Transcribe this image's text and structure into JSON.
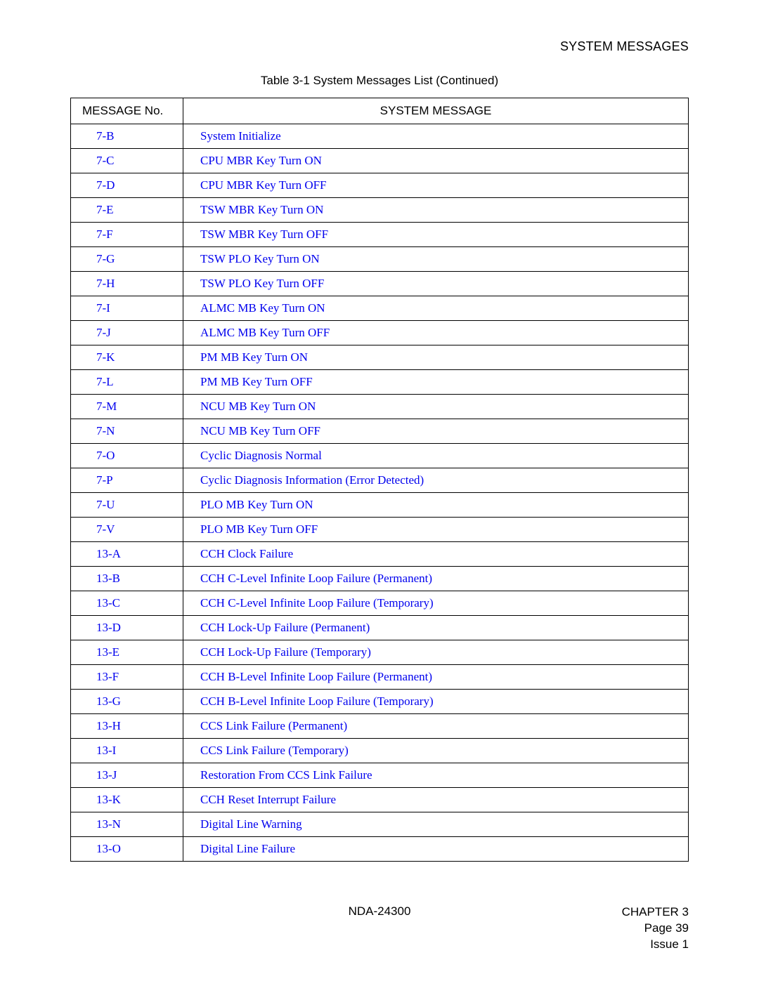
{
  "header": {
    "section_title": "SYSTEM MESSAGES"
  },
  "table": {
    "caption": "Table 3-1  System Messages List (Continued)",
    "columns": [
      "MESSAGE No.",
      "SYSTEM MESSAGE"
    ],
    "link_color": "#0000ee",
    "border_color": "#000000",
    "rows": [
      {
        "no": "7-B",
        "msg": "System Initialize"
      },
      {
        "no": "7-C",
        "msg": "CPU MBR Key Turn ON"
      },
      {
        "no": "7-D",
        "msg": "CPU MBR Key Turn OFF"
      },
      {
        "no": "7-E",
        "msg": "TSW MBR Key Turn ON"
      },
      {
        "no": "7-F",
        "msg": "TSW MBR Key Turn OFF"
      },
      {
        "no": "7-G",
        "msg": "TSW PLO Key Turn ON"
      },
      {
        "no": "7-H",
        "msg": "TSW PLO Key Turn OFF"
      },
      {
        "no": "7-I",
        "msg": "ALMC MB Key Turn ON"
      },
      {
        "no": "7-J",
        "msg": "ALMC MB Key Turn OFF"
      },
      {
        "no": "7-K",
        "msg": "PM MB Key Turn ON"
      },
      {
        "no": "7-L",
        "msg": "PM MB Key Turn OFF"
      },
      {
        "no": "7-M",
        "msg": "NCU MB Key Turn ON"
      },
      {
        "no": "7-N",
        "msg": "NCU MB Key Turn OFF"
      },
      {
        "no": "7-O",
        "msg": "Cyclic Diagnosis Normal"
      },
      {
        "no": "7-P",
        "msg": "Cyclic Diagnosis Information (Error Detected)"
      },
      {
        "no": "7-U",
        "msg": "PLO MB Key Turn ON"
      },
      {
        "no": "7-V",
        "msg": "PLO MB Key Turn OFF"
      },
      {
        "no": "13-A",
        "msg": "CCH Clock Failure"
      },
      {
        "no": "13-B",
        "msg": "CCH C-Level Infinite Loop Failure (Permanent)"
      },
      {
        "no": "13-C",
        "msg": "CCH C-Level Infinite Loop Failure (Temporary)"
      },
      {
        "no": "13-D",
        "msg": "CCH Lock-Up Failure (Permanent)"
      },
      {
        "no": "13-E",
        "msg": "CCH Lock-Up Failure (Temporary)"
      },
      {
        "no": "13-F",
        "msg": "CCH B-Level Infinite Loop Failure (Permanent)"
      },
      {
        "no": "13-G",
        "msg": "CCH B-Level Infinite Loop Failure (Temporary)"
      },
      {
        "no": "13-H",
        "msg": "CCS Link Failure (Permanent)"
      },
      {
        "no": "13-I",
        "msg": "CCS Link Failure (Temporary)"
      },
      {
        "no": "13-J",
        "msg": "Restoration From CCS Link Failure"
      },
      {
        "no": "13-K",
        "msg": "CCH Reset Interrupt Failure"
      },
      {
        "no": "13-N",
        "msg": "Digital Line Warning"
      },
      {
        "no": "13-O",
        "msg": "Digital Line Failure"
      }
    ]
  },
  "footer": {
    "doc_id": "NDA-24300",
    "chapter": "CHAPTER 3",
    "page": "Page 39",
    "issue": "Issue 1"
  }
}
